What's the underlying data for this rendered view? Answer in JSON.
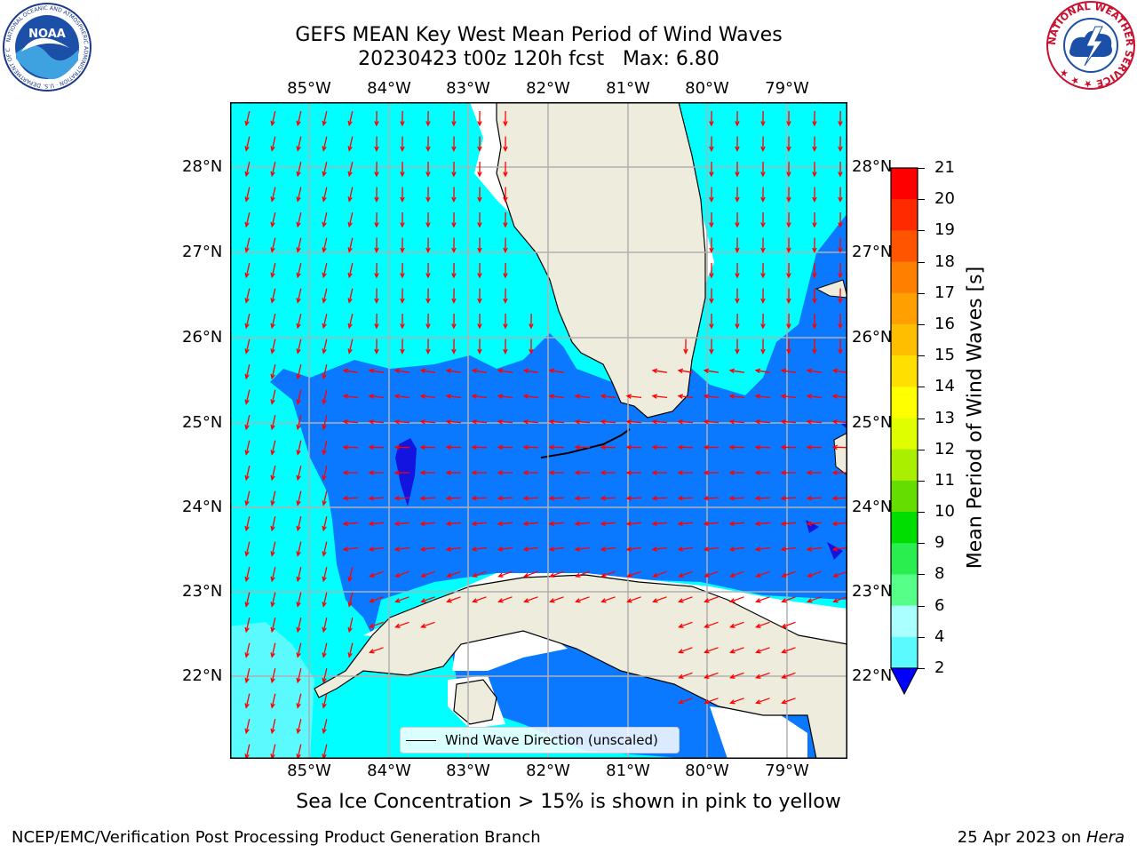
{
  "header": {
    "title_line1": "GEFS MEAN Key West Mean Period of Wind Waves",
    "title_line2": "20230423 t00z 120h fcst   Max: 6.80"
  },
  "logos": {
    "left_text": "NOAA",
    "left_ring": "NATIONAL OCEANIC AND ATMOSPHERIC ADMINISTRATION · U.S. DEPARTMENT OF COMMERCE",
    "right_ring": "NATIONAL WEATHER SERVICE"
  },
  "map": {
    "lon_labels": [
      "85°W",
      "84°W",
      "83°W",
      "82°W",
      "81°W",
      "80°W",
      "79°W"
    ],
    "lat_labels": [
      "28°N",
      "27°N",
      "26°N",
      "25°N",
      "24°N",
      "23°N",
      "22°N"
    ],
    "legend_label": "Wind Wave Direction (unscaled)",
    "colors": {
      "land": "#eeecdc",
      "band_2_4": "#0a78ff",
      "band_4_6": "#00ffff",
      "band_6_8": "#5afaff",
      "band_0_2": "#1414e0",
      "arrow": "#ff0000",
      "grid": "#b0b0b0"
    }
  },
  "colorbar": {
    "label": "Mean Period of Wind Waves [s]",
    "ticks": [
      "21",
      "20",
      "19",
      "18",
      "17",
      "16",
      "15",
      "14",
      "13",
      "12",
      "11",
      "10",
      "9",
      "8",
      "6",
      "4",
      "2"
    ],
    "colors": [
      "#ff0000",
      "#ff2a00",
      "#ff5500",
      "#ff7f00",
      "#ff9f00",
      "#ffbf00",
      "#ffdf00",
      "#ffff00",
      "#dfff00",
      "#aaee00",
      "#66dd00",
      "#00dd00",
      "#2aee50",
      "#55ff88",
      "#aaffff",
      "#5afaff",
      "#00ffff",
      "#0a78ff"
    ]
  },
  "footer": {
    "subtitle": "Sea Ice Concentration > 15% is shown in pink to yellow",
    "credit": "NCEP/EMC/Verification Post Processing Product Generation Branch",
    "date": "25 Apr 2023 on ",
    "host": "Hera"
  }
}
